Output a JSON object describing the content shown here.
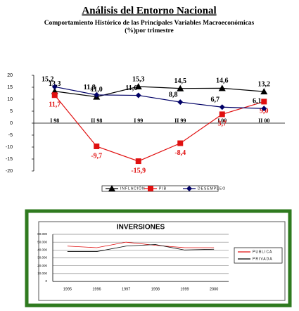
{
  "header": {
    "title": "Análisis del Entorno Nacional",
    "subtitle": "Comportamiento Histórico de las Principales Variables Macroeconómicas",
    "subtitle2": "(%)por trimestre"
  },
  "chart_data": [
    {
      "type": "line",
      "categories": [
        "I 98",
        "II 98",
        "I 99",
        "II 99",
        "I 00",
        "II 00"
      ],
      "ylim": [
        -20,
        20
      ],
      "yticks": [
        -20,
        -15,
        -10,
        -5,
        0,
        5,
        10,
        15,
        20
      ],
      "series": [
        {
          "name": "INFLACIÓN",
          "color": "#000000",
          "marker": "triangle",
          "values": [
            13.3,
            11.0,
            15.3,
            14.5,
            14.6,
            13.2
          ],
          "value_labels": [
            "13,3",
            "11,0",
            "15,3",
            "14,5",
            "14,6",
            "13,2"
          ]
        },
        {
          "name": "PIB",
          "color": "#e01010",
          "marker": "square",
          "values": [
            11.7,
            -9.7,
            -15.9,
            -8.4,
            3.7,
            9.0
          ],
          "value_labels": [
            "11,7",
            "-9,7",
            "-15,9",
            "-8,4",
            "3,7",
            "9,0"
          ]
        },
        {
          "name": "DESEMPLEO",
          "color": "#000066",
          "marker": "diamond",
          "values": [
            15.2,
            11.8,
            11.6,
            8.8,
            6.7,
            6.1
          ],
          "value_labels": [
            "15,2",
            "11,8",
            "11,6",
            "8,8",
            "6,7",
            "6,1"
          ]
        }
      ]
    },
    {
      "type": "line",
      "title": "INVERSIONES",
      "categories": [
        "1995",
        "1996",
        "1997",
        "1998",
        "1999",
        "2000"
      ],
      "ylim": [
        0,
        60000
      ],
      "yticks": [
        {
          "value": 0,
          "label": "0"
        },
        {
          "value": 10000,
          "label": "10.000"
        },
        {
          "value": 20000,
          "label": "20.000"
        },
        {
          "value": 30000,
          "label": "30.000"
        },
        {
          "value": 40000,
          "label": "40.000"
        },
        {
          "value": 50000,
          "label": "50.000"
        },
        {
          "value": 60000,
          "label": "60.000"
        }
      ],
      "series": [
        {
          "name": "PUBLICA",
          "color": "#e01010",
          "values": [
            45000,
            43000,
            50000,
            46000,
            43000,
            43000
          ]
        },
        {
          "name": "PRIVADA",
          "color": "#000000",
          "values": [
            38000,
            38000,
            45000,
            47000,
            40000,
            41000
          ]
        }
      ]
    }
  ]
}
